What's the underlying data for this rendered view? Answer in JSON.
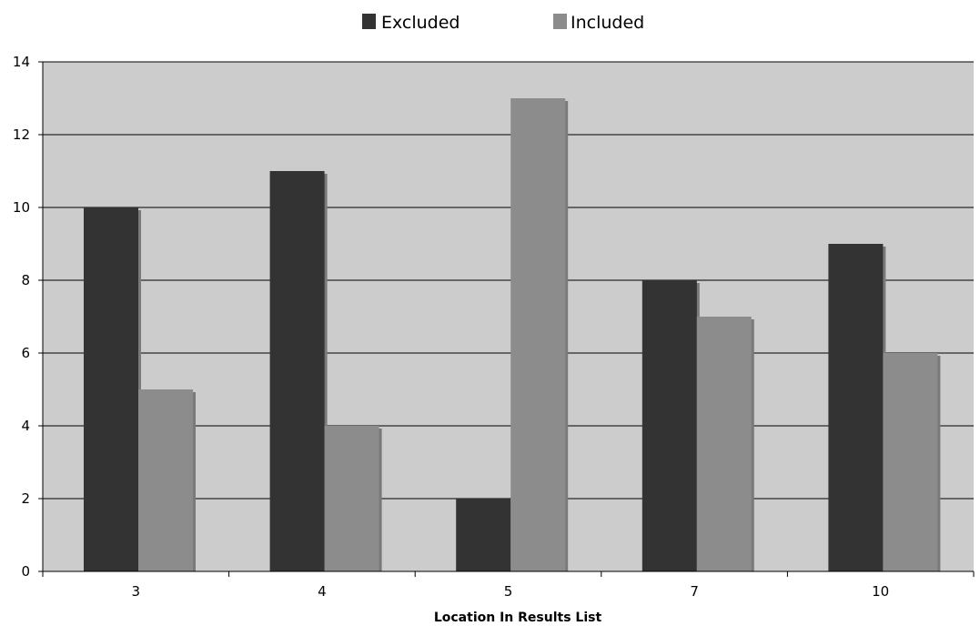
{
  "chart_data": {
    "type": "bar",
    "title": "",
    "xlabel": "Location In Results List",
    "ylabel": "",
    "categories": [
      "3",
      "4",
      "5",
      "7",
      "10"
    ],
    "series": [
      {
        "name": "Excluded",
        "values": [
          10,
          11,
          2,
          8,
          9
        ]
      },
      {
        "name": "Included",
        "values": [
          5,
          4,
          13,
          7,
          6
        ]
      }
    ],
    "ylim": [
      0,
      14
    ],
    "yticks": [
      "0",
      "2",
      "4",
      "6",
      "8",
      "10",
      "12",
      "14"
    ],
    "grid": true,
    "legend_position": "top-center",
    "colors": {
      "Excluded": "#333333",
      "Included": "#8c8c8c",
      "plot_background": "#cccccc",
      "shadow": "#7a7a7a",
      "gridline": "#000000"
    }
  }
}
